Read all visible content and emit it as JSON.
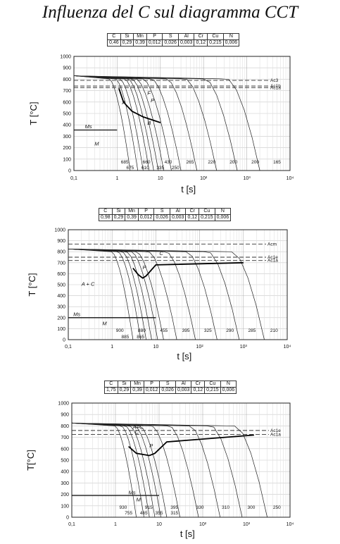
{
  "title": "Influenza del C sul diagramma CCT",
  "composition_headers": [
    "C",
    "Si",
    "Mn",
    "P",
    "S",
    "Al",
    "Cr",
    "Cu",
    "N"
  ],
  "chart_data": [
    {
      "type": "line",
      "composition": [
        "0,46",
        "0,29",
        "0,39",
        "0,012",
        "0,026",
        "0,003",
        "0,12",
        "0,215",
        "0,006"
      ],
      "xlabel": "t [s]",
      "ylabel": "T [°C]",
      "x_scale": "log",
      "xlim": [
        0.1,
        10000
      ],
      "ylim": [
        0,
        1000
      ],
      "x_ticks": [
        "0,1",
        "1",
        "10",
        "10²",
        "10³",
        "10⁴"
      ],
      "y_ticks": [
        "0",
        "100",
        "200",
        "300",
        "400",
        "500",
        "600",
        "700",
        "800",
        "900",
        "1000"
      ],
      "grid": true,
      "critical_lines": [
        {
          "label": "Ac3",
          "T": 790
        },
        {
          "label": "Ac1b",
          "T": 740
        },
        {
          "label": "Ac1a",
          "T": 725
        }
      ],
      "ms_temperature": 355,
      "regions": [
        {
          "label": "A",
          "t": 1.3,
          "T": 580
        },
        {
          "label": "F",
          "t": 5,
          "T": 665
        },
        {
          "label": "P",
          "t": 6,
          "T": 600
        },
        {
          "label": "B",
          "t": 5,
          "T": 400
        },
        {
          "label": "Ms",
          "t": 0.18,
          "T": 370
        },
        {
          "label": "M",
          "t": 0.3,
          "T": 220
        }
      ],
      "hardness_labels_row1": [
        "685",
        "660",
        "430",
        "265",
        "220",
        "200",
        "200",
        "165"
      ],
      "hardness_labels_row2": [
        "675",
        "610",
        "335",
        "250"
      ],
      "cooling_curve_end_times": [
        2,
        3,
        4,
        5.5,
        7,
        9,
        12,
        18,
        30,
        70,
        200,
        600,
        2000
      ]
    },
    {
      "type": "line",
      "composition": [
        "0,98",
        "0,29",
        "0,39",
        "0,012",
        "0,026",
        "0,003",
        "0,12",
        "0,215",
        "0,006"
      ],
      "xlabel": "t [s]",
      "ylabel": "T [°C]",
      "x_scale": "log",
      "xlim": [
        0.1,
        10000
      ],
      "ylim": [
        0,
        1000
      ],
      "x_ticks": [
        "0,1",
        "1",
        "10",
        "10²",
        "10³",
        "10⁴"
      ],
      "y_ticks": [
        "0",
        "100",
        "200",
        "300",
        "400",
        "500",
        "600",
        "700",
        "800",
        "900",
        "1000"
      ],
      "grid": true,
      "critical_lines": [
        {
          "label": "Acm",
          "T": 870
        },
        {
          "label": "Ac1e",
          "T": 750
        },
        {
          "label": "Ac1a",
          "T": 720
        }
      ],
      "ms_temperature": 200,
      "regions": [
        {
          "label": "A + C",
          "t": 0.2,
          "T": 490
        },
        {
          "label": "C",
          "t": 12,
          "T": 770
        },
        {
          "label": "P",
          "t": 5,
          "T": 640
        },
        {
          "label": "M",
          "t": 0.6,
          "T": 130
        },
        {
          "label": "Ms",
          "t": 0.13,
          "T": 215
        }
      ],
      "hardness_labels_row1": [
        "900",
        "880",
        "455",
        "395",
        "325",
        "290",
        "285",
        "210"
      ],
      "hardness_labels_row2": [
        "885",
        "865"
      ],
      "cooling_curve_end_times": [
        3,
        4.5,
        6,
        8,
        11,
        15,
        30,
        80,
        250,
        800,
        3000
      ]
    },
    {
      "type": "line",
      "composition": [
        "1,75",
        "0,29",
        "0,39",
        "0,012",
        "0,026",
        "0,003",
        "0,12",
        "0,215",
        "0,006"
      ],
      "xlabel": "t [s]",
      "ylabel": "T[°C]",
      "x_scale": "log",
      "xlim": [
        0.1,
        10000
      ],
      "ylim": [
        0,
        1000
      ],
      "x_ticks": [
        "0,1",
        "1",
        "10",
        "10²",
        "10³",
        "10⁴"
      ],
      "y_ticks": [
        "0",
        "100",
        "200",
        "300",
        "400",
        "500",
        "600",
        "700",
        "800",
        "900",
        "1000"
      ],
      "grid": true,
      "critical_lines": [
        {
          "label": "Ac1e",
          "T": 760
        },
        {
          "label": "Ac1a",
          "T": 725
        }
      ],
      "ms_temperature": 190,
      "regions": [
        {
          "label": "A+C",
          "t": 2.5,
          "T": 775
        },
        {
          "label": "C",
          "t": 2.8,
          "T": 730
        },
        {
          "label": "P",
          "t": 6,
          "T": 610
        },
        {
          "label": "Ms",
          "t": 2,
          "T": 200
        },
        {
          "label": "M",
          "t": 3,
          "T": 140
        }
      ],
      "hardness_labels_row1": [
        "930",
        "915",
        "395",
        "330",
        "310",
        "300",
        "250"
      ],
      "hardness_labels_row2": [
        "755",
        "465",
        "355",
        "315"
      ],
      "cooling_curve_end_times": [
        3,
        4.5,
        6,
        8,
        11,
        15,
        30,
        80,
        250,
        800,
        3000
      ]
    }
  ]
}
